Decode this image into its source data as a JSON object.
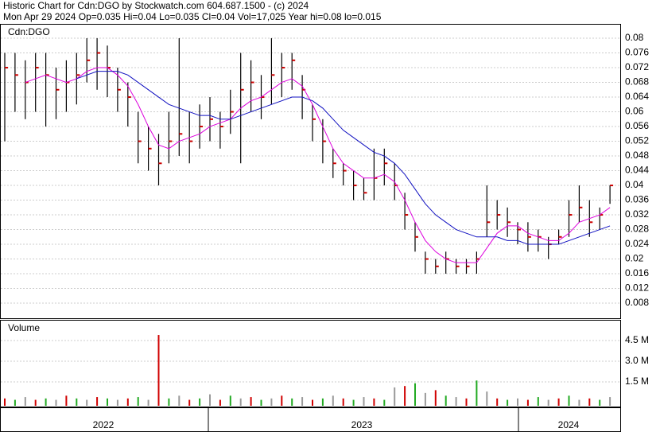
{
  "header": {
    "line1": "Historic Chart for Cdn:DGO by Stockwatch.com 604.687.1500 - (c) 2024",
    "line2": "Mon Apr 29 2024  Op=0.035  Hi=0.04  Lo=0.035  Cl=0.04  Vol=17,025  Year hi=0.08  lo=0.015"
  },
  "chart_data": [
    {
      "type": "ohlc",
      "title": "Cdn:DGO",
      "ylim": [
        0.0039,
        0.0839
      ],
      "yticks": [
        0.008,
        0.012,
        0.016,
        0.02,
        0.024,
        0.028,
        0.032,
        0.036,
        0.04,
        0.044,
        0.048,
        0.052,
        0.056,
        0.06,
        0.064,
        0.068,
        0.072,
        0.076,
        0.08
      ],
      "grid": true,
      "high": [
        0.076,
        0.076,
        0.074,
        0.076,
        0.076,
        0.072,
        0.074,
        0.076,
        0.08,
        0.08,
        0.078,
        0.072,
        0.068,
        0.06,
        0.056,
        0.054,
        0.06,
        0.08,
        0.06,
        0.062,
        0.064,
        0.06,
        0.066,
        0.076,
        0.074,
        0.07,
        0.08,
        0.076,
        0.076,
        0.07,
        0.062,
        0.058,
        0.05,
        0.046,
        0.044,
        0.042,
        0.05,
        0.05,
        0.046,
        0.038,
        0.03,
        0.022,
        0.02,
        0.022,
        0.02,
        0.02,
        0.022,
        0.04,
        0.036,
        0.034,
        0.03,
        0.03,
        0.028,
        0.026,
        0.028,
        0.036,
        0.04,
        0.036,
        0.034,
        0.04
      ],
      "low": [
        0.052,
        0.06,
        0.058,
        0.06,
        0.056,
        0.058,
        0.06,
        0.062,
        0.068,
        0.066,
        0.064,
        0.06,
        0.056,
        0.046,
        0.044,
        0.04,
        0.046,
        0.048,
        0.046,
        0.05,
        0.052,
        0.05,
        0.054,
        0.046,
        0.06,
        0.058,
        0.062,
        0.064,
        0.066,
        0.058,
        0.052,
        0.046,
        0.042,
        0.04,
        0.036,
        0.036,
        0.036,
        0.04,
        0.036,
        0.028,
        0.022,
        0.016,
        0.016,
        0.016,
        0.016,
        0.016,
        0.016,
        0.026,
        0.028,
        0.026,
        0.024,
        0.022,
        0.022,
        0.02,
        0.024,
        0.026,
        0.03,
        0.026,
        0.028,
        0.035
      ],
      "close": [
        0.072,
        0.07,
        0.068,
        0.072,
        0.07,
        0.066,
        0.068,
        0.07,
        0.074,
        0.076,
        0.072,
        0.066,
        0.064,
        0.052,
        0.05,
        0.046,
        0.052,
        0.054,
        0.052,
        0.056,
        0.058,
        0.056,
        0.06,
        0.066,
        0.068,
        0.064,
        0.07,
        0.072,
        0.074,
        0.066,
        0.058,
        0.052,
        0.046,
        0.044,
        0.04,
        0.038,
        0.042,
        0.046,
        0.04,
        0.032,
        0.026,
        0.02,
        0.018,
        0.02,
        0.018,
        0.018,
        0.02,
        0.03,
        0.032,
        0.03,
        0.028,
        0.026,
        0.026,
        0.024,
        0.026,
        0.032,
        0.034,
        0.03,
        0.032,
        0.04
      ],
      "close_color": "#cc0000",
      "series": [
        {
          "color": "#dd00dd",
          "values": [
            null,
            null,
            0.068,
            0.069,
            0.07,
            0.069,
            0.068,
            0.069,
            0.071,
            0.072,
            0.072,
            0.07,
            0.067,
            0.062,
            0.056,
            0.051,
            0.05,
            0.052,
            0.053,
            0.054,
            0.056,
            0.057,
            0.058,
            0.061,
            0.063,
            0.064,
            0.066,
            0.068,
            0.069,
            0.067,
            0.062,
            0.056,
            0.05,
            0.046,
            0.044,
            0.042,
            0.042,
            0.043,
            0.041,
            0.036,
            0.03,
            0.025,
            0.022,
            0.02,
            0.019,
            0.019,
            0.019,
            0.023,
            0.027,
            0.029,
            0.029,
            0.027,
            0.026,
            0.025,
            0.025,
            0.027,
            0.03,
            0.031,
            0.032,
            0.034
          ]
        },
        {
          "color": "#1010c0",
          "values": [
            null,
            null,
            null,
            null,
            null,
            null,
            null,
            0.069,
            0.07,
            0.071,
            0.071,
            0.071,
            0.07,
            0.068,
            0.066,
            0.064,
            0.062,
            0.061,
            0.06,
            0.059,
            0.059,
            0.058,
            0.058,
            0.059,
            0.06,
            0.061,
            0.062,
            0.063,
            0.064,
            0.064,
            0.063,
            0.061,
            0.058,
            0.055,
            0.053,
            0.051,
            0.049,
            0.048,
            0.046,
            0.043,
            0.039,
            0.035,
            0.032,
            0.03,
            0.028,
            0.027,
            0.026,
            0.026,
            0.026,
            0.025,
            0.025,
            0.024,
            0.024,
            0.024,
            0.024,
            0.025,
            0.026,
            0.027,
            0.028,
            0.029
          ]
        }
      ]
    },
    {
      "type": "bar",
      "title": "Volume",
      "ylim": [
        0,
        5.94
      ],
      "yticks": [
        {
          "value": 1.5,
          "label": "1.5 M"
        },
        {
          "value": 3.0,
          "label": "3.0 M"
        },
        {
          "value": 4.5,
          "label": "4.5 M"
        }
      ],
      "grid": true,
      "values": [
        0.3,
        0.2,
        0.4,
        0.2,
        0.3,
        0.2,
        0.5,
        0.3,
        0.2,
        0.4,
        0.3,
        0.2,
        0.3,
        0.4,
        0.2,
        4.9,
        0.3,
        0.5,
        0.2,
        0.3,
        0.6,
        0.2,
        0.5,
        0.3,
        0.4,
        0.2,
        0.3,
        0.5,
        0.3,
        0.4,
        0.2,
        0.3,
        0.5,
        0.3,
        0.2,
        0.4,
        0.3,
        0.2,
        1.1,
        1.2,
        1.4,
        0.7,
        0.9,
        0.5,
        0.4,
        0.3,
        1.6,
        0.8,
        0.3,
        0.2,
        0.3,
        0.2,
        0.4,
        0.2,
        0.3,
        0.5,
        0.2,
        0.3,
        0.2,
        0.4
      ],
      "colors": [
        "#d00000",
        "#22aa22",
        "#999999"
      ],
      "years": [
        "2022",
        "2023",
        "2024"
      ]
    }
  ]
}
